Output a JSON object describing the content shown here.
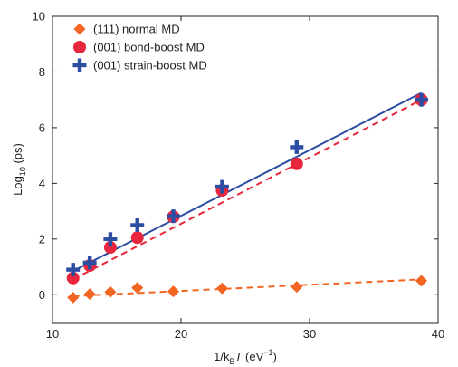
{
  "chart_data": {
    "type": "scatter",
    "xlabel": {
      "prefix": "1/k",
      "sub": "B",
      "italic": "T",
      "suffix": " (eV",
      "sup": "−1",
      "close": ")"
    },
    "ylabel": {
      "prefix": "Log",
      "sub": "10",
      "suffix": " (ps)"
    },
    "xlim": [
      10,
      40
    ],
    "ylim": [
      -1,
      10
    ],
    "xticks": [
      "10",
      "20",
      "30",
      "40"
    ],
    "yticks": [
      "0",
      "2",
      "4",
      "6",
      "8",
      "10"
    ],
    "x_tick_values": [
      10,
      20,
      30,
      40
    ],
    "y_tick_values": [
      0,
      2,
      4,
      6,
      8,
      10
    ],
    "legend_position": "top-left",
    "series": [
      {
        "name": "(111) normal MD",
        "marker": "diamond",
        "color": "#f26522",
        "points": [
          [
            11.6,
            -0.1
          ],
          [
            12.9,
            0.02
          ],
          [
            14.5,
            0.1
          ],
          [
            16.6,
            0.25
          ],
          [
            19.4,
            0.12
          ],
          [
            23.2,
            0.23
          ],
          [
            29.0,
            0.28
          ],
          [
            38.7,
            0.5
          ]
        ]
      },
      {
        "name": "(001) bond-boost MD",
        "marker": "circle",
        "color": "#e8263d",
        "points": [
          [
            11.6,
            0.6
          ],
          [
            12.9,
            1.05
          ],
          [
            14.5,
            1.7
          ],
          [
            16.6,
            2.05
          ],
          [
            19.4,
            2.8
          ],
          [
            23.2,
            3.75
          ],
          [
            29.0,
            4.7
          ],
          [
            38.7,
            7.0
          ]
        ]
      },
      {
        "name": "(001) strain-boost MD",
        "marker": "plus",
        "color": "#2b4ea2",
        "points": [
          [
            11.6,
            0.9
          ],
          [
            12.9,
            1.15
          ],
          [
            14.5,
            2.0
          ],
          [
            16.6,
            2.5
          ],
          [
            19.4,
            2.82
          ],
          [
            23.2,
            3.88
          ],
          [
            29.0,
            5.3
          ],
          [
            38.7,
            7.0
          ]
        ]
      }
    ],
    "fit_lines": [
      {
        "series": "(111) normal MD",
        "style": "dashed",
        "color": "#f26522",
        "from": [
          11.6,
          -0.05
        ],
        "to": [
          38.7,
          0.55
        ]
      },
      {
        "series": "(001) bond-boost MD",
        "style": "dashed",
        "color": "#e8263d",
        "from": [
          11.6,
          0.55
        ],
        "to": [
          38.7,
          7.0
        ]
      },
      {
        "series": "(001) strain-boost MD",
        "style": "solid",
        "color": "#2b4ea2",
        "from": [
          11.6,
          0.85
        ],
        "to": [
          38.7,
          7.25
        ]
      }
    ]
  }
}
